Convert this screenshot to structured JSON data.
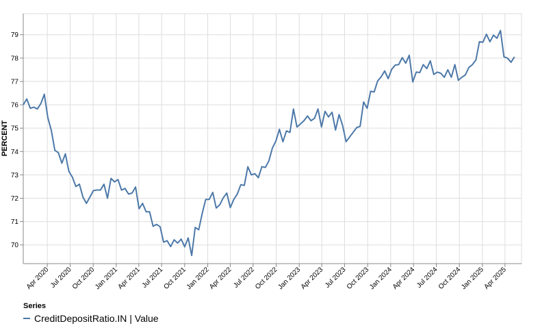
{
  "chart_data": {
    "type": "line",
    "ylabel": "PERCENT",
    "xlabel": "",
    "ylim": [
      69.2,
      79.9
    ],
    "yticks": [
      70,
      71,
      72,
      73,
      74,
      75,
      76,
      77,
      78,
      79
    ],
    "xticks": [
      {
        "date": "2020-04-01",
        "label": "Apr 2020"
      },
      {
        "date": "2020-07-01",
        "label": "Jul 2020"
      },
      {
        "date": "2020-10-01",
        "label": "Oct 2020"
      },
      {
        "date": "2021-01-01",
        "label": "Jan 2021"
      },
      {
        "date": "2021-04-01",
        "label": "Apr 2021"
      },
      {
        "date": "2021-07-01",
        "label": "Jul 2021"
      },
      {
        "date": "2021-10-01",
        "label": "Oct 2021"
      },
      {
        "date": "2022-01-01",
        "label": "Jan 2022"
      },
      {
        "date": "2022-04-01",
        "label": "Apr 2022"
      },
      {
        "date": "2022-07-01",
        "label": "Jul 2022"
      },
      {
        "date": "2022-10-01",
        "label": "Oct 2022"
      },
      {
        "date": "2023-01-01",
        "label": "Jan 2023"
      },
      {
        "date": "2023-04-01",
        "label": "Apr 2023"
      },
      {
        "date": "2023-07-01",
        "label": "Jul 2023"
      },
      {
        "date": "2023-10-01",
        "label": "Oct 2023"
      },
      {
        "date": "2024-01-01",
        "label": "Jan 2024"
      },
      {
        "date": "2024-04-01",
        "label": "Apr 2024"
      },
      {
        "date": "2024-07-01",
        "label": "Jul 2024"
      },
      {
        "date": "2024-10-01",
        "label": "Oct 2024"
      },
      {
        "date": "2025-01-01",
        "label": "Jan 2025"
      },
      {
        "date": "2025-04-01",
        "label": "Apr 2025"
      }
    ],
    "xlim": [
      "2019-12-27",
      "2025-06-06"
    ],
    "grid": true,
    "legend": {
      "title": "Series",
      "position": "bottom-left"
    },
    "series": [
      {
        "name": "CreditDepositRatio.IN | Value",
        "color": "#4c78a8",
        "points": [
          [
            "2019-12-27",
            76.0
          ],
          [
            "2020-01-10",
            76.25
          ],
          [
            "2020-01-24",
            75.85
          ],
          [
            "2020-02-07",
            75.9
          ],
          [
            "2020-02-21",
            75.82
          ],
          [
            "2020-03-06",
            76.05
          ],
          [
            "2020-03-20",
            76.45
          ],
          [
            "2020-04-03",
            75.45
          ],
          [
            "2020-04-17",
            74.9
          ],
          [
            "2020-05-01",
            74.05
          ],
          [
            "2020-05-15",
            73.95
          ],
          [
            "2020-05-29",
            73.5
          ],
          [
            "2020-06-12",
            73.9
          ],
          [
            "2020-06-26",
            73.15
          ],
          [
            "2020-07-10",
            72.9
          ],
          [
            "2020-07-24",
            72.5
          ],
          [
            "2020-08-07",
            72.6
          ],
          [
            "2020-08-21",
            72.05
          ],
          [
            "2020-09-04",
            71.78
          ],
          [
            "2020-09-18",
            72.05
          ],
          [
            "2020-10-02",
            72.33
          ],
          [
            "2020-10-16",
            72.35
          ],
          [
            "2020-10-30",
            72.35
          ],
          [
            "2020-11-13",
            72.6
          ],
          [
            "2020-11-27",
            72.0
          ],
          [
            "2020-12-11",
            72.85
          ],
          [
            "2020-12-25",
            72.7
          ],
          [
            "2021-01-08",
            72.8
          ],
          [
            "2021-01-22",
            72.35
          ],
          [
            "2021-02-05",
            72.42
          ],
          [
            "2021-02-19",
            72.18
          ],
          [
            "2021-03-05",
            72.22
          ],
          [
            "2021-03-19",
            72.48
          ],
          [
            "2021-04-02",
            71.55
          ],
          [
            "2021-04-16",
            71.78
          ],
          [
            "2021-04-30",
            71.42
          ],
          [
            "2021-05-14",
            71.42
          ],
          [
            "2021-05-28",
            70.8
          ],
          [
            "2021-06-11",
            70.88
          ],
          [
            "2021-06-25",
            70.78
          ],
          [
            "2021-07-09",
            70.12
          ],
          [
            "2021-07-23",
            70.18
          ],
          [
            "2021-08-06",
            69.93
          ],
          [
            "2021-08-20",
            70.22
          ],
          [
            "2021-09-03",
            70.08
          ],
          [
            "2021-09-17",
            70.25
          ],
          [
            "2021-10-01",
            69.92
          ],
          [
            "2021-10-15",
            70.3
          ],
          [
            "2021-10-29",
            69.55
          ],
          [
            "2021-11-12",
            70.75
          ],
          [
            "2021-11-26",
            70.65
          ],
          [
            "2021-12-10",
            71.35
          ],
          [
            "2021-12-24",
            71.95
          ],
          [
            "2022-01-07",
            71.95
          ],
          [
            "2022-01-21",
            72.25
          ],
          [
            "2022-02-04",
            71.58
          ],
          [
            "2022-02-18",
            71.72
          ],
          [
            "2022-03-04",
            72.02
          ],
          [
            "2022-03-18",
            72.22
          ],
          [
            "2022-04-01",
            71.6
          ],
          [
            "2022-04-15",
            71.95
          ],
          [
            "2022-04-29",
            72.18
          ],
          [
            "2022-05-13",
            72.58
          ],
          [
            "2022-05-27",
            72.55
          ],
          [
            "2022-06-10",
            73.35
          ],
          [
            "2022-06-24",
            73.0
          ],
          [
            "2022-07-08",
            73.05
          ],
          [
            "2022-07-22",
            72.88
          ],
          [
            "2022-08-05",
            73.35
          ],
          [
            "2022-08-19",
            73.32
          ],
          [
            "2022-09-02",
            73.6
          ],
          [
            "2022-09-16",
            74.15
          ],
          [
            "2022-09-30",
            74.45
          ],
          [
            "2022-10-14",
            74.95
          ],
          [
            "2022-10-28",
            74.42
          ],
          [
            "2022-11-11",
            74.88
          ],
          [
            "2022-11-25",
            74.82
          ],
          [
            "2022-12-09",
            75.82
          ],
          [
            "2022-12-23",
            75.05
          ],
          [
            "2023-01-06",
            75.18
          ],
          [
            "2023-01-20",
            75.32
          ],
          [
            "2023-02-03",
            75.52
          ],
          [
            "2023-02-17",
            75.32
          ],
          [
            "2023-03-03",
            75.42
          ],
          [
            "2023-03-17",
            75.82
          ],
          [
            "2023-03-31",
            75.05
          ],
          [
            "2023-04-14",
            75.72
          ],
          [
            "2023-04-28",
            75.48
          ],
          [
            "2023-05-12",
            75.68
          ],
          [
            "2023-05-26",
            74.92
          ],
          [
            "2023-06-09",
            75.58
          ],
          [
            "2023-06-23",
            75.12
          ],
          [
            "2023-07-07",
            74.42
          ],
          [
            "2023-07-21",
            74.62
          ],
          [
            "2023-08-04",
            74.82
          ],
          [
            "2023-08-18",
            75.02
          ],
          [
            "2023-09-01",
            75.08
          ],
          [
            "2023-09-15",
            76.12
          ],
          [
            "2023-09-29",
            75.85
          ],
          [
            "2023-10-13",
            76.58
          ],
          [
            "2023-10-27",
            76.55
          ],
          [
            "2023-11-10",
            77.02
          ],
          [
            "2023-11-24",
            77.2
          ],
          [
            "2023-12-08",
            77.45
          ],
          [
            "2023-12-22",
            77.12
          ],
          [
            "2024-01-05",
            77.52
          ],
          [
            "2024-01-19",
            77.7
          ],
          [
            "2024-02-02",
            77.72
          ],
          [
            "2024-02-16",
            78.02
          ],
          [
            "2024-03-01",
            77.78
          ],
          [
            "2024-03-15",
            78.12
          ],
          [
            "2024-03-29",
            76.98
          ],
          [
            "2024-04-12",
            77.4
          ],
          [
            "2024-04-26",
            77.38
          ],
          [
            "2024-05-10",
            77.72
          ],
          [
            "2024-05-24",
            77.55
          ],
          [
            "2024-06-07",
            77.88
          ],
          [
            "2024-06-21",
            77.3
          ],
          [
            "2024-07-05",
            77.4
          ],
          [
            "2024-07-19",
            77.35
          ],
          [
            "2024-08-02",
            77.18
          ],
          [
            "2024-08-16",
            77.5
          ],
          [
            "2024-08-30",
            77.18
          ],
          [
            "2024-09-13",
            77.72
          ],
          [
            "2024-09-27",
            77.05
          ],
          [
            "2024-10-11",
            77.18
          ],
          [
            "2024-10-25",
            77.28
          ],
          [
            "2024-11-08",
            77.6
          ],
          [
            "2024-11-22",
            77.72
          ],
          [
            "2024-12-06",
            77.92
          ],
          [
            "2024-12-20",
            78.7
          ],
          [
            "2025-01-03",
            78.68
          ],
          [
            "2025-01-17",
            79.02
          ],
          [
            "2025-01-31",
            78.7
          ],
          [
            "2025-02-14",
            78.98
          ],
          [
            "2025-02-28",
            78.85
          ],
          [
            "2025-03-14",
            79.18
          ],
          [
            "2025-03-28",
            78.05
          ],
          [
            "2025-04-11",
            78.0
          ],
          [
            "2025-04-25",
            77.82
          ],
          [
            "2025-05-09",
            78.05
          ]
        ]
      }
    ]
  }
}
